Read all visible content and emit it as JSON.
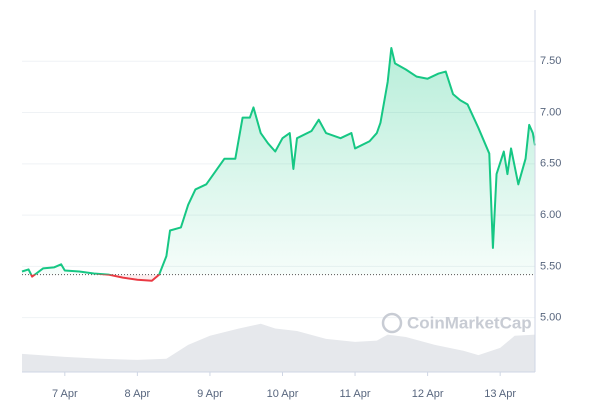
{
  "chart_data": {
    "type": "line",
    "watermark": "CoinMarketCap",
    "xlim": [
      6.41,
      13.48
    ],
    "xticks": [
      {
        "value": 7,
        "label": "7 Apr"
      },
      {
        "value": 8,
        "label": "8 Apr"
      },
      {
        "value": 9,
        "label": "9 Apr"
      },
      {
        "value": 10,
        "label": "10 Apr"
      },
      {
        "value": 11,
        "label": "11 Apr"
      },
      {
        "value": 12,
        "label": "12 Apr"
      },
      {
        "value": 13,
        "label": "13 Apr"
      }
    ],
    "ylim": [
      4.47,
      8.0
    ],
    "yticks": [
      {
        "value": 5,
        "label": "5.00"
      },
      {
        "value": 5.5,
        "label": "5.50"
      },
      {
        "value": 6,
        "label": "6.00"
      },
      {
        "value": 6.5,
        "label": "6.50"
      },
      {
        "value": 7,
        "label": "7.00"
      },
      {
        "value": 7.5,
        "label": "7.50"
      }
    ],
    "y2lim": [
      0,
      600
    ],
    "grid": true,
    "reference_line": 5.42,
    "up_color": "#16c784",
    "down_color": "#ea3943",
    "series": [
      {
        "color": "#16c784",
        "x": [
          6.41,
          6.5,
          6.55,
          6.7,
          6.85,
          6.95,
          7.0,
          7.2,
          7.4,
          7.6,
          7.8,
          8.0,
          8.2,
          8.3,
          8.4,
          8.45,
          8.6,
          8.7,
          8.8,
          8.95,
          9.1,
          9.2,
          9.35,
          9.45,
          9.55,
          9.6,
          9.7,
          9.8,
          9.9,
          10.0,
          10.1,
          10.15,
          10.2,
          10.4,
          10.5,
          10.6,
          10.8,
          10.95,
          11.0,
          11.2,
          11.3,
          11.35,
          11.45,
          11.5,
          11.55,
          11.7,
          11.85,
          12.0,
          12.15,
          12.25,
          12.35,
          12.45,
          12.55,
          12.7,
          12.85,
          12.9,
          12.95,
          13.05,
          13.1,
          13.15,
          13.25,
          13.35,
          13.4,
          13.45,
          13.48
        ],
        "values": [
          5.45,
          5.47,
          5.4,
          5.48,
          5.49,
          5.52,
          5.46,
          5.45,
          5.43,
          5.42,
          5.39,
          5.37,
          5.36,
          5.42,
          5.6,
          5.85,
          5.88,
          6.1,
          6.25,
          6.3,
          6.45,
          6.55,
          6.55,
          6.95,
          6.95,
          7.05,
          6.8,
          6.7,
          6.62,
          6.75,
          6.8,
          6.45,
          6.75,
          6.82,
          6.93,
          6.8,
          6.75,
          6.8,
          6.65,
          6.72,
          6.8,
          6.9,
          7.3,
          7.63,
          7.48,
          7.42,
          7.35,
          7.33,
          7.38,
          7.4,
          7.18,
          7.12,
          7.08,
          6.85,
          6.6,
          5.68,
          6.4,
          6.62,
          6.4,
          6.65,
          6.3,
          6.55,
          6.88,
          6.8,
          6.68
        ]
      },
      {
        "color": "#e6e8ec",
        "axis": "y2",
        "type": "area",
        "x": [
          6.41,
          7.0,
          7.5,
          8.0,
          8.4,
          8.7,
          9.0,
          9.4,
          9.7,
          9.9,
          10.2,
          10.6,
          11.0,
          11.3,
          11.45,
          11.7,
          12.1,
          12.5,
          12.7,
          13.0,
          13.2,
          13.48
        ],
        "values": [
          30,
          25,
          22,
          20,
          22,
          45,
          60,
          72,
          80,
          72,
          68,
          55,
          50,
          52,
          62,
          58,
          45,
          35,
          28,
          40,
          60,
          62
        ]
      }
    ]
  }
}
